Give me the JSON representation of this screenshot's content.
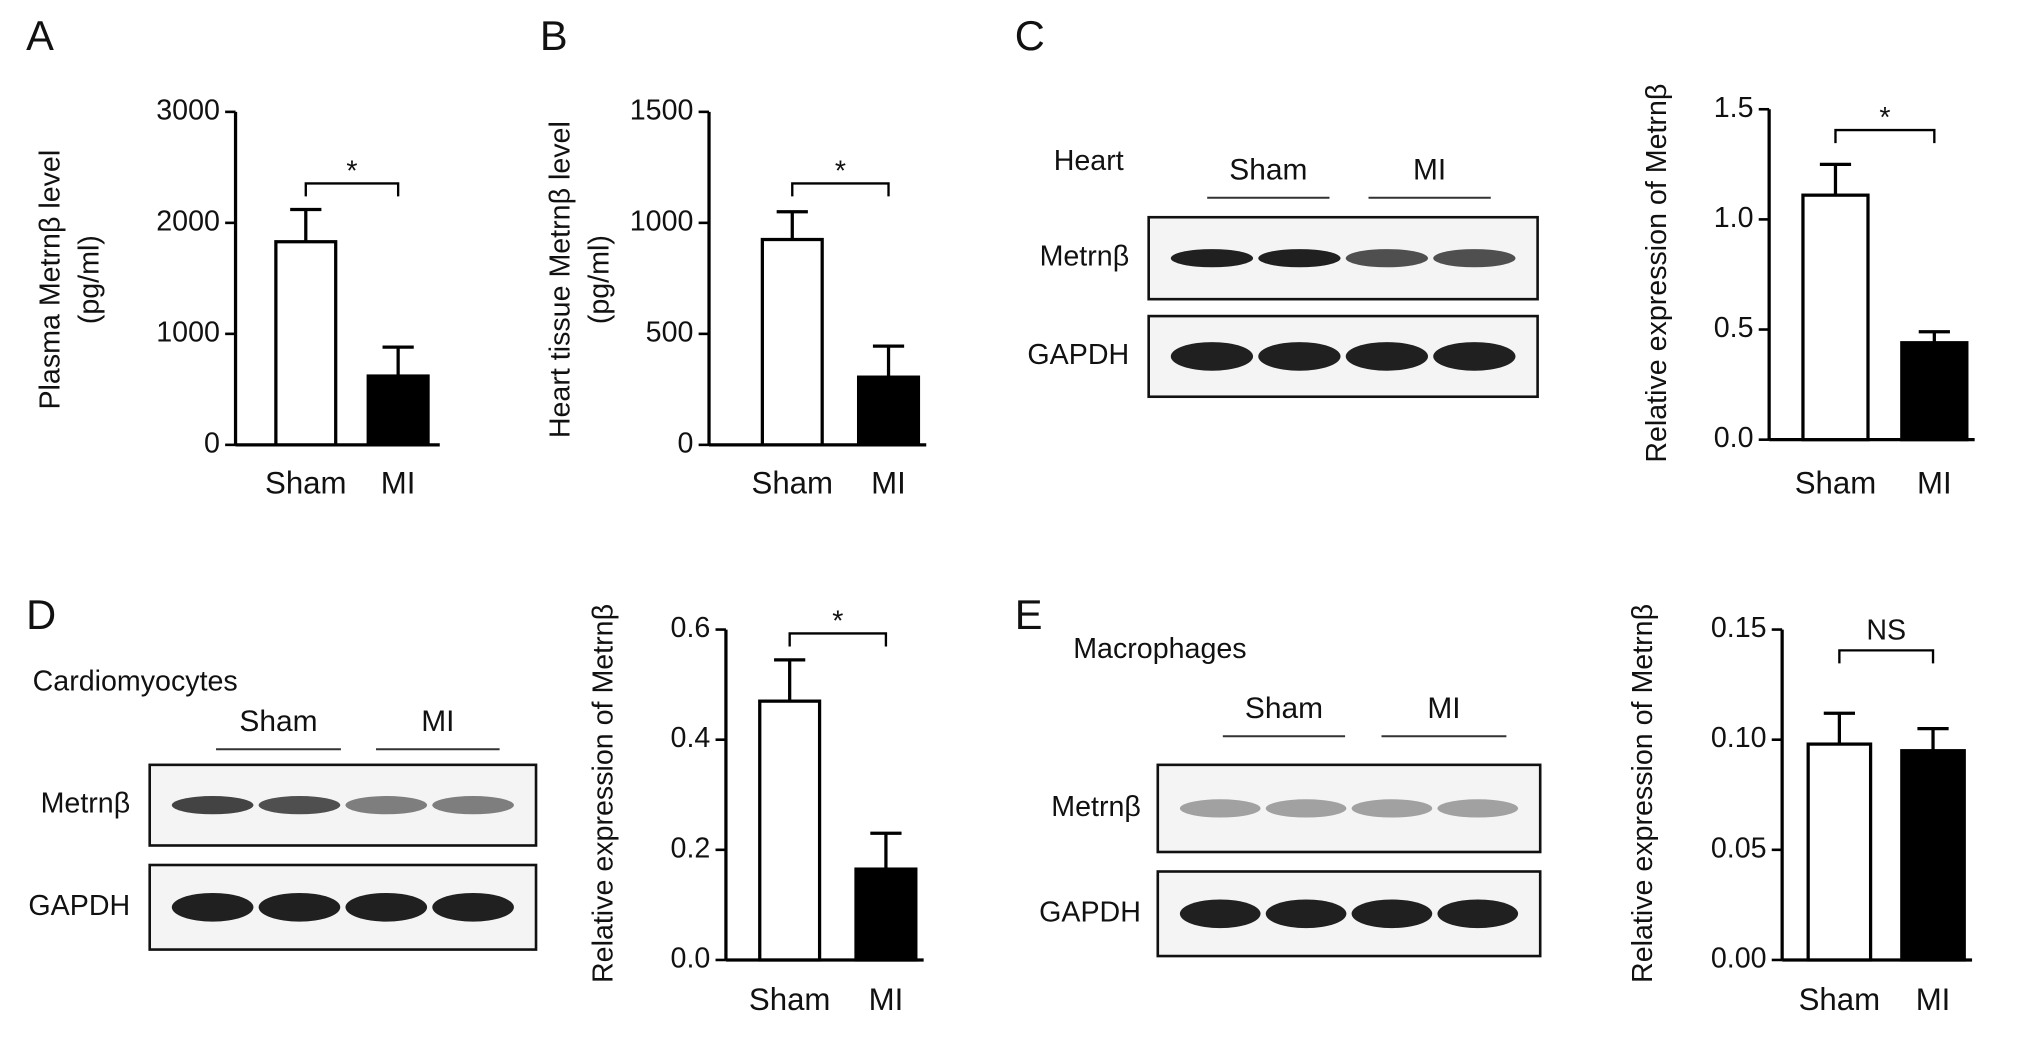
{
  "chart_data": [
    {
      "type": "bar",
      "panel": "A",
      "ylabel": [
        "Plasma Metrnβ level",
        "(pg/ml)"
      ],
      "categories": [
        "Sham",
        "MI"
      ],
      "values": [
        1830,
        620
      ],
      "errors": [
        290,
        260
      ],
      "colors": [
        "#ffffff",
        "#000000"
      ],
      "ylim": [
        0,
        3000
      ],
      "yticks": [
        0,
        1000,
        2000,
        3000
      ],
      "significance": "*"
    },
    {
      "type": "bar",
      "panel": "B",
      "ylabel": [
        "Heart tissue Metrnβ level",
        "(pg/ml)"
      ],
      "categories": [
        "Sham",
        "MI"
      ],
      "values": [
        925,
        305
      ],
      "errors": [
        125,
        140
      ],
      "colors": [
        "#ffffff",
        "#000000"
      ],
      "ylim": [
        0,
        1500
      ],
      "yticks": [
        0,
        500,
        1000,
        1500
      ],
      "significance": "*"
    },
    {
      "type": "bar",
      "panel": "C",
      "ylabel": [
        "Relative expression of Metrnβ"
      ],
      "categories": [
        "Sham",
        "MI"
      ],
      "values": [
        1.11,
        0.44
      ],
      "errors": [
        0.14,
        0.05
      ],
      "colors": [
        "#ffffff",
        "#000000"
      ],
      "ylim": [
        0,
        1.5
      ],
      "yticks": [
        {
          "value": 0,
          "label": "0.0"
        },
        0.5,
        {
          "value": 1,
          "label": "1.0"
        },
        1.5
      ],
      "significance": "*",
      "blot": {
        "title": "Heart",
        "groups": [
          "Sham",
          "MI"
        ],
        "rows": [
          "Metrnβ",
          "GAPDH"
        ]
      }
    },
    {
      "type": "bar",
      "panel": "D",
      "ylabel": [
        "Relative expression of Metrnβ"
      ],
      "categories": [
        "Sham",
        "MI"
      ],
      "values": [
        0.47,
        0.165
      ],
      "errors": [
        0.075,
        0.065
      ],
      "colors": [
        "#ffffff",
        "#000000"
      ],
      "ylim": [
        0,
        0.6
      ],
      "yticks": [
        {
          "value": 0,
          "label": "0.0"
        },
        0.2,
        0.4,
        0.6
      ],
      "significance": "*",
      "blot": {
        "title": "Cardiomyocytes",
        "groups": [
          "Sham",
          "MI"
        ],
        "rows": [
          "Metrnβ",
          "GAPDH"
        ]
      }
    },
    {
      "type": "bar",
      "panel": "E",
      "ylabel": [
        "Relative expression of Metrnβ"
      ],
      "categories": [
        "Sham",
        "MI"
      ],
      "values": [
        0.098,
        0.095
      ],
      "errors": [
        0.014,
        0.01
      ],
      "colors": [
        "#ffffff",
        "#000000"
      ],
      "ylim": [
        0,
        0.15
      ],
      "yticks": [
        {
          "value": 0,
          "label": "0.00"
        },
        {
          "value": 0.05,
          "label": "0.05"
        },
        {
          "value": 0.1,
          "label": "0.10"
        },
        {
          "value": 0.15,
          "label": "0.15"
        }
      ],
      "significance": "NS",
      "blot": {
        "title": "Macrophages",
        "groups": [
          "Sham",
          "MI"
        ],
        "rows": [
          "Metrnβ",
          "GAPDH"
        ]
      }
    }
  ]
}
